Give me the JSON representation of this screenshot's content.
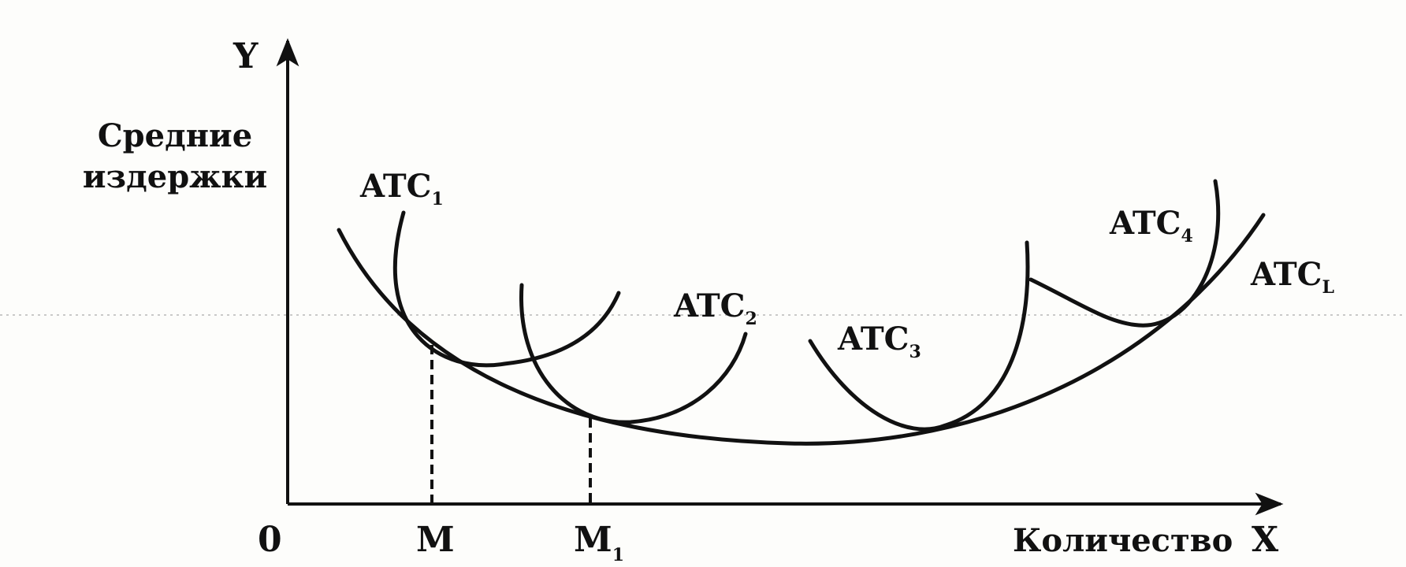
{
  "chart_data": {
    "type": "line",
    "title": "",
    "origin_label": "0",
    "y_axis": {
      "letter": "Y",
      "label_lines": [
        "Средние",
        "издержки"
      ]
    },
    "x_axis": {
      "letter": "X",
      "label": "Количество"
    },
    "quantity_marks": [
      {
        "label": "M",
        "subscript": ""
      },
      {
        "label": "M",
        "subscript": "1"
      }
    ],
    "series": [
      {
        "name": "ATC",
        "subscript": "1"
      },
      {
        "name": "ATC",
        "subscript": "2"
      },
      {
        "name": "ATC",
        "subscript": "3"
      },
      {
        "name": "ATC",
        "subscript": "4"
      },
      {
        "name": "ATC",
        "subscript": "L"
      }
    ],
    "grid": false,
    "legend": "none"
  }
}
